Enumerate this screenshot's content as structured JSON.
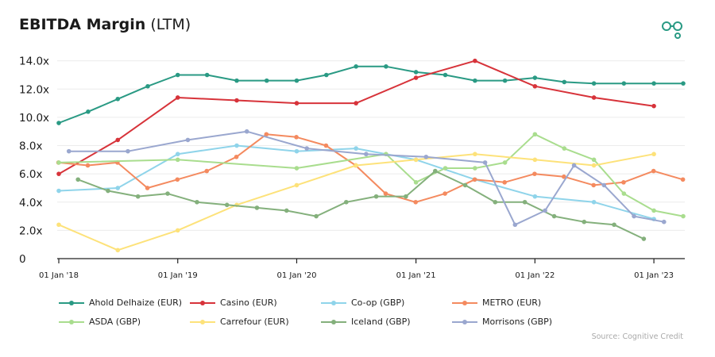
{
  "header": {
    "title_bold": "EBITDA Margin",
    "title_rest": "(LTM)"
  },
  "logo_icon": "cognitive-credit-logo-icon",
  "source": "Source: Cognitive Credit",
  "colors": {
    "Ahold Delhaize (EUR)": "#2a9a84",
    "Casino (EUR)": "#d7333a",
    "Co-op (GBP)": "#8fd4ea",
    "METRO (EUR)": "#f48a5f",
    "ASDA (GBP)": "#a9dd8e",
    "Carrefour (EUR)": "#fde27a",
    "Iceland (GBP)": "#84b07c",
    "Morrisons (GBP)": "#9aa7cf"
  },
  "chart_data": {
    "type": "line",
    "title": "EBITDA Margin (LTM)",
    "xlabel": "",
    "ylabel": "",
    "x_ticks": [
      "01 Jan '18",
      "01 Jan '19",
      "01 Jan '20",
      "01 Jan '21",
      "01 Jan '22",
      "01 Jan '23"
    ],
    "y_ticks": [
      "0",
      "2.0x",
      "4.0x",
      "6.0x",
      "8.0x",
      "10.0x",
      "12.0x",
      "14.0x"
    ],
    "ylim": [
      0,
      14.6
    ],
    "xlim": [
      "2018-01-01",
      "2023-04-01"
    ],
    "grid": "horizontal",
    "legend_position": "bottom",
    "series": [
      {
        "name": "Ahold Delhaize (EUR)",
        "points": [
          [
            "2018-01-01",
            9.6
          ],
          [
            "2018-04-01",
            10.4
          ],
          [
            "2018-07-01",
            11.3
          ],
          [
            "2018-10-01",
            12.2
          ],
          [
            "2019-01-01",
            13.0
          ],
          [
            "2019-04-01",
            13.0
          ],
          [
            "2019-07-01",
            12.6
          ],
          [
            "2019-10-01",
            12.6
          ],
          [
            "2020-01-01",
            12.6
          ],
          [
            "2020-04-01",
            13.0
          ],
          [
            "2020-07-01",
            13.6
          ],
          [
            "2020-10-01",
            13.6
          ],
          [
            "2021-01-01",
            13.2
          ],
          [
            "2021-04-01",
            13.0
          ],
          [
            "2021-07-01",
            12.6
          ],
          [
            "2021-10-01",
            12.6
          ],
          [
            "2022-01-01",
            12.8
          ],
          [
            "2022-04-01",
            12.5
          ],
          [
            "2022-07-01",
            12.4
          ],
          [
            "2022-10-01",
            12.4
          ],
          [
            "2023-01-01",
            12.4
          ],
          [
            "2023-04-01",
            12.4
          ]
        ]
      },
      {
        "name": "Casino (EUR)",
        "points": [
          [
            "2018-01-01",
            6.0
          ],
          [
            "2018-07-01",
            8.4
          ],
          [
            "2019-01-01",
            11.4
          ],
          [
            "2019-07-01",
            11.2
          ],
          [
            "2020-01-01",
            11.0
          ],
          [
            "2020-07-01",
            11.0
          ],
          [
            "2021-01-01",
            12.8
          ],
          [
            "2021-07-01",
            14.0
          ],
          [
            "2022-01-01",
            12.2
          ],
          [
            "2022-07-01",
            11.4
          ],
          [
            "2023-01-01",
            10.8
          ]
        ]
      },
      {
        "name": "Co-op (GBP)",
        "points": [
          [
            "2018-01-01",
            4.8
          ],
          [
            "2018-07-01",
            5.0
          ],
          [
            "2019-01-01",
            7.4
          ],
          [
            "2019-07-01",
            8.0
          ],
          [
            "2020-01-01",
            7.6
          ],
          [
            "2020-07-01",
            7.8
          ],
          [
            "2021-01-01",
            7.0
          ],
          [
            "2021-07-01",
            5.6
          ],
          [
            "2022-01-01",
            4.4
          ],
          [
            "2022-07-01",
            4.0
          ],
          [
            "2023-01-01",
            2.8
          ]
        ]
      },
      {
        "name": "METRO (EUR)",
        "points": [
          [
            "2017-12-31",
            6.8
          ],
          [
            "2018-03-31",
            6.6
          ],
          [
            "2018-06-30",
            6.8
          ],
          [
            "2018-09-30",
            5.0
          ],
          [
            "2018-12-31",
            5.6
          ],
          [
            "2019-03-31",
            6.2
          ],
          [
            "2019-06-30",
            7.2
          ],
          [
            "2019-09-30",
            8.8
          ],
          [
            "2019-12-31",
            8.6
          ],
          [
            "2020-03-31",
            8.0
          ],
          [
            "2020-06-30",
            6.6
          ],
          [
            "2020-09-30",
            4.6
          ],
          [
            "2020-12-31",
            4.0
          ],
          [
            "2021-03-31",
            4.6
          ],
          [
            "2021-06-30",
            5.6
          ],
          [
            "2021-09-30",
            5.4
          ],
          [
            "2021-12-31",
            6.0
          ],
          [
            "2022-03-31",
            5.8
          ],
          [
            "2022-06-30",
            5.2
          ],
          [
            "2022-09-30",
            5.4
          ],
          [
            "2022-12-31",
            6.2
          ],
          [
            "2023-03-31",
            5.6
          ]
        ]
      },
      {
        "name": "ASDA (GBP)",
        "points": [
          [
            "2018-01-01",
            6.8
          ],
          [
            "2019-01-01",
            7.0
          ],
          [
            "2020-01-01",
            6.4
          ],
          [
            "2020-10-01",
            7.4
          ],
          [
            "2021-01-01",
            5.4
          ],
          [
            "2021-04-01",
            6.4
          ],
          [
            "2021-07-01",
            6.4
          ],
          [
            "2021-10-01",
            6.8
          ],
          [
            "2022-01-01",
            8.8
          ],
          [
            "2022-04-01",
            7.8
          ],
          [
            "2022-07-01",
            7.0
          ],
          [
            "2022-10-01",
            4.6
          ],
          [
            "2023-01-01",
            3.4
          ],
          [
            "2023-04-01",
            3.0
          ]
        ]
      },
      {
        "name": "Carrefour (EUR)",
        "points": [
          [
            "2018-01-01",
            2.4
          ],
          [
            "2018-07-01",
            0.6
          ],
          [
            "2019-01-01",
            2.0
          ],
          [
            "2019-07-01",
            3.8
          ],
          [
            "2020-01-01",
            5.2
          ],
          [
            "2020-07-01",
            6.6
          ],
          [
            "2021-01-01",
            7.0
          ],
          [
            "2021-07-01",
            7.4
          ],
          [
            "2022-01-01",
            7.0
          ],
          [
            "2022-07-01",
            6.6
          ],
          [
            "2023-01-01",
            7.4
          ]
        ]
      },
      {
        "name": "Iceland (GBP)",
        "points": [
          [
            "2018-03-01",
            5.6
          ],
          [
            "2018-06-01",
            4.8
          ],
          [
            "2018-09-01",
            4.4
          ],
          [
            "2018-12-01",
            4.6
          ],
          [
            "2019-03-01",
            4.0
          ],
          [
            "2019-06-01",
            3.8
          ],
          [
            "2019-09-01",
            3.6
          ],
          [
            "2019-12-01",
            3.4
          ],
          [
            "2020-03-01",
            3.0
          ],
          [
            "2020-06-01",
            4.0
          ],
          [
            "2020-09-01",
            4.4
          ],
          [
            "2020-12-01",
            4.4
          ],
          [
            "2021-03-01",
            6.2
          ],
          [
            "2021-06-01",
            5.2
          ],
          [
            "2021-09-01",
            4.0
          ],
          [
            "2021-12-01",
            4.0
          ],
          [
            "2022-03-01",
            3.0
          ],
          [
            "2022-06-01",
            2.6
          ],
          [
            "2022-09-01",
            2.4
          ],
          [
            "2022-12-01",
            1.4
          ]
        ]
      },
      {
        "name": "Morrisons (GBP)",
        "points": [
          [
            "2018-02-01",
            7.6
          ],
          [
            "2018-08-01",
            7.6
          ],
          [
            "2019-02-01",
            8.4
          ],
          [
            "2019-08-01",
            9.0
          ],
          [
            "2020-02-01",
            7.8
          ],
          [
            "2020-08-01",
            7.4
          ],
          [
            "2021-02-01",
            7.2
          ],
          [
            "2021-08-01",
            6.8
          ],
          [
            "2021-11-01",
            2.4
          ],
          [
            "2022-02-01",
            3.4
          ],
          [
            "2022-05-01",
            6.6
          ],
          [
            "2022-08-01",
            5.2
          ],
          [
            "2022-11-01",
            3.0
          ],
          [
            "2023-02-01",
            2.6
          ]
        ]
      }
    ]
  }
}
